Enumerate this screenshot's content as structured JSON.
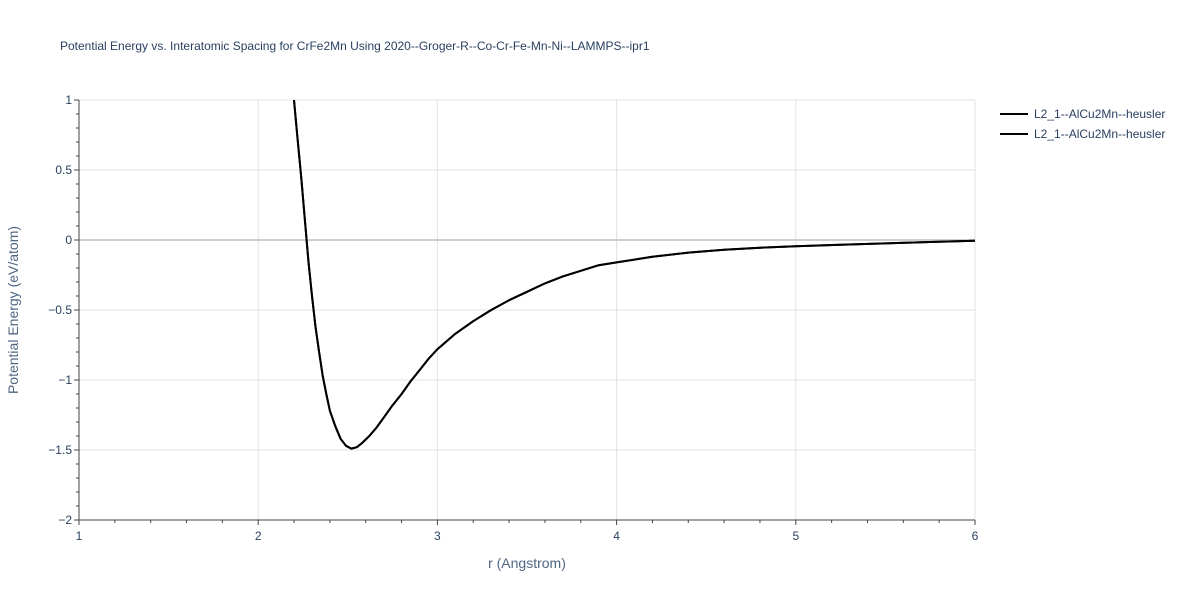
{
  "chart_data": {
    "type": "line",
    "title": "Potential Energy vs. Interatomic Spacing for CrFe2Mn Using 2020--Groger-R--Co-Cr-Fe-Mn-Ni--LAMMPS--ipr1",
    "xlabel": "r (Angstrom)",
    "ylabel": "Potential Energy (eV/atom)",
    "xlim": [
      1,
      6
    ],
    "ylim": [
      -2,
      1
    ],
    "x_ticks": [
      "1",
      "2",
      "3",
      "4",
      "5",
      "6"
    ],
    "y_ticks": [
      "1",
      "0.5",
      "0",
      "−0.5",
      "−1",
      "−1.5",
      "−2"
    ],
    "grid": true,
    "legend_position": "top-right",
    "series": [
      {
        "name": "L2_1--AlCu2Mn--heusler",
        "color": "#000000",
        "x": [
          2.2,
          2.22,
          2.24,
          2.26,
          2.28,
          2.3,
          2.32,
          2.34,
          2.36,
          2.38,
          2.4,
          2.43,
          2.46,
          2.49,
          2.52,
          2.55,
          2.58,
          2.62,
          2.66,
          2.7,
          2.75,
          2.8,
          2.85,
          2.9,
          2.95,
          3.0,
          3.1,
          3.2,
          3.3,
          3.4,
          3.5,
          3.6,
          3.7,
          3.8,
          3.9,
          4.0,
          4.2,
          4.4,
          4.6,
          4.8,
          5.0,
          5.25,
          5.5,
          5.75,
          6.0
        ],
        "y": [
          1.0,
          0.72,
          0.45,
          0.15,
          -0.15,
          -0.4,
          -0.62,
          -0.8,
          -0.97,
          -1.1,
          -1.22,
          -1.33,
          -1.42,
          -1.47,
          -1.49,
          -1.48,
          -1.45,
          -1.4,
          -1.34,
          -1.27,
          -1.18,
          -1.1,
          -1.01,
          -0.93,
          -0.85,
          -0.78,
          -0.67,
          -0.58,
          -0.5,
          -0.43,
          -0.37,
          -0.31,
          -0.26,
          -0.22,
          -0.18,
          -0.16,
          -0.12,
          -0.09,
          -0.07,
          -0.055,
          -0.045,
          -0.034,
          -0.024,
          -0.014,
          -0.005
        ]
      },
      {
        "name": "L2_1--AlCu2Mn--heusler",
        "color": "#000000",
        "x": [
          2.2,
          2.22,
          2.24,
          2.26,
          2.28,
          2.3,
          2.32,
          2.34,
          2.36,
          2.38,
          2.4,
          2.43,
          2.46,
          2.49,
          2.52,
          2.55,
          2.58,
          2.62,
          2.66,
          2.7,
          2.75,
          2.8,
          2.85,
          2.9,
          2.95,
          3.0,
          3.1,
          3.2,
          3.3,
          3.4,
          3.5,
          3.6,
          3.7,
          3.8,
          3.9,
          4.0,
          4.2,
          4.4,
          4.6,
          4.8,
          5.0,
          5.25,
          5.5,
          5.75,
          6.0
        ],
        "y": [
          1.0,
          0.72,
          0.45,
          0.15,
          -0.15,
          -0.4,
          -0.62,
          -0.8,
          -0.97,
          -1.1,
          -1.22,
          -1.33,
          -1.42,
          -1.47,
          -1.49,
          -1.48,
          -1.45,
          -1.4,
          -1.34,
          -1.27,
          -1.18,
          -1.1,
          -1.01,
          -0.93,
          -0.85,
          -0.78,
          -0.67,
          -0.58,
          -0.5,
          -0.43,
          -0.37,
          -0.31,
          -0.26,
          -0.22,
          -0.18,
          -0.16,
          -0.12,
          -0.09,
          -0.07,
          -0.055,
          -0.045,
          -0.034,
          -0.024,
          -0.014,
          -0.005
        ]
      }
    ]
  }
}
